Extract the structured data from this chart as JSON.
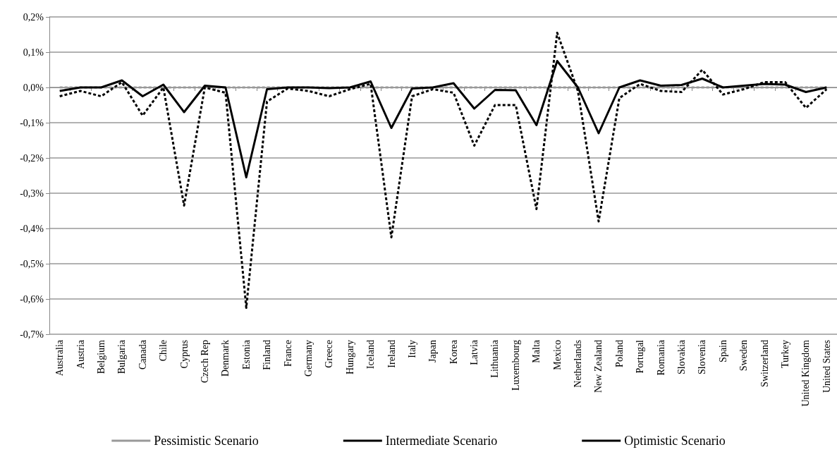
{
  "chart_data": {
    "type": "line",
    "categories": [
      "Australia",
      "Austria",
      "Belgium",
      "Bulgaria",
      "Canada",
      "Chile",
      "Cyprus",
      "Czech Rep",
      "Denmark",
      "Estonia",
      "Finland",
      "France",
      "Germany",
      "Greece",
      "Hungary",
      "Iceland",
      "Ireland",
      "Italy",
      "Japan",
      "Korea",
      "Latvia",
      "Lithuania",
      "Luxembourg",
      "Malta",
      "Mexico",
      "Netherlands",
      "New Zealand",
      "Poland",
      "Portugal",
      "Romania",
      "Slovakia",
      "Slovenia",
      "Spain",
      "Sweden",
      "Switzerland",
      "Turkey",
      "United Kingdom",
      "United States"
    ],
    "series": [
      {
        "name": "Pessimistic Scenario",
        "color": "#999999",
        "line_style": "dashed",
        "values": [
          0,
          0,
          0,
          0,
          0,
          0,
          0,
          0,
          0,
          0,
          0,
          0,
          0,
          0,
          0,
          0,
          0,
          0,
          0,
          0,
          0,
          0,
          0,
          0,
          0,
          0,
          0,
          0,
          0,
          0,
          0,
          0,
          0,
          0,
          0,
          0,
          0,
          0
        ]
      },
      {
        "name": "Intermediate Scenario",
        "color": "#000000",
        "line_style": "solid",
        "values": [
          -0.01,
          0,
          0,
          0.02,
          -0.025,
          0.008,
          -0.07,
          0.005,
          0,
          -0.255,
          -0.005,
          0,
          0,
          -0.002,
          0,
          0.017,
          -0.115,
          -0.003,
          0,
          0.012,
          -0.06,
          -0.007,
          -0.008,
          -0.107,
          0.075,
          0,
          -0.13,
          0,
          0.02,
          0.005,
          0.007,
          0.025,
          0,
          0.005,
          0.01,
          0.008,
          -0.013,
          0
        ]
      },
      {
        "name": "Optimistic Scenario",
        "color": "#000000",
        "line_style": "dashed",
        "values": [
          -0.025,
          -0.01,
          -0.025,
          0.015,
          -0.08,
          0,
          -0.335,
          0,
          -0.015,
          -0.625,
          -0.04,
          -0.003,
          -0.01,
          -0.025,
          -0.005,
          0.01,
          -0.425,
          -0.025,
          -0.005,
          -0.015,
          -0.165,
          -0.05,
          -0.05,
          -0.345,
          0.155,
          -0.01,
          -0.38,
          -0.03,
          0.01,
          -0.01,
          -0.013,
          0.05,
          -0.02,
          -0.005,
          0.015,
          0.015,
          -0.058,
          -0.005
        ]
      }
    ],
    "ylim": [
      -0.7,
      0.2
    ],
    "yticks": [
      {
        "value": -0.7,
        "label": "-0,7%"
      },
      {
        "value": -0.6,
        "label": "-0,6%"
      },
      {
        "value": -0.5,
        "label": "-0,5%"
      },
      {
        "value": -0.4,
        "label": "-0,4%"
      },
      {
        "value": -0.3,
        "label": "-0,3%"
      },
      {
        "value": -0.2,
        "label": "-0,2%"
      },
      {
        "value": -0.1,
        "label": "-0,1%"
      },
      {
        "value": 0,
        "label": "0,0%"
      },
      {
        "value": 0.1,
        "label": "0,1%"
      },
      {
        "value": 0.2,
        "label": "0,2%"
      }
    ],
    "grid": "y",
    "legend": "bottom",
    "marker": "none"
  }
}
